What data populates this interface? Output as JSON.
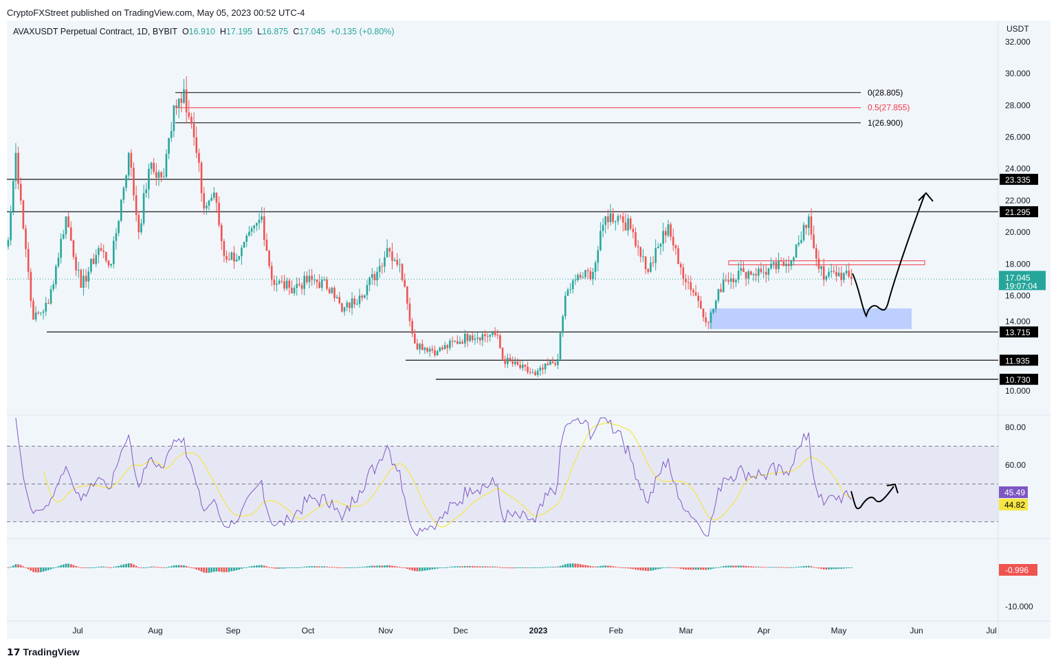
{
  "publisher": "CryptoFXStreet published on TradingView.com, May 05, 2023 00:52 UTC-4",
  "legend": {
    "symbol": "AVAXUSDT Perpetual Contract, 1D, BYBIT",
    "o_label": "O",
    "o": "16.910",
    "h_label": "H",
    "h": "17.195",
    "l_label": "L",
    "l": "16.875",
    "c_label": "C",
    "c": "17.045",
    "change": "+0.135 (+0.80%)"
  },
  "logo": "TradingView",
  "colors": {
    "up": "#26a69a",
    "down": "#ef5350",
    "rsi": "#7e57c2",
    "rsi_ma": "#f5e642",
    "fib_mid": "#f23645",
    "zone": "#a9c2ff"
  },
  "chart_data": [
    {
      "type": "candlestick",
      "title": "AVAXUSDT Perpetual Contract, 1D, BYBIT",
      "ylabel": "USDT",
      "ylim": [
        10,
        32
      ],
      "yticks": [
        "32.000",
        "30.000",
        "28.000",
        "26.000",
        "24.000",
        "22.000",
        "20.000",
        "18.000",
        "16.000",
        "14.000",
        "10.000"
      ],
      "xticks": [
        "Jul",
        "Aug",
        "Sep",
        "Oct",
        "Nov",
        "Dec",
        "2023",
        "Feb",
        "Mar",
        "Apr",
        "May",
        "Jun",
        "Jul"
      ],
      "close_keypoints_day_price": [
        [
          0,
          19.5
        ],
        [
          3,
          25
        ],
        [
          5,
          22
        ],
        [
          10,
          14.5
        ],
        [
          16,
          15.5
        ],
        [
          23,
          21
        ],
        [
          29,
          16.5
        ],
        [
          36,
          19
        ],
        [
          41,
          18
        ],
        [
          48,
          25
        ],
        [
          52,
          20
        ],
        [
          56,
          24
        ],
        [
          62,
          23.5
        ],
        [
          66,
          28
        ],
        [
          70,
          29
        ],
        [
          75,
          25
        ],
        [
          78,
          21.5
        ],
        [
          82,
          22.5
        ],
        [
          86,
          18.5
        ],
        [
          92,
          18.5
        ],
        [
          101,
          21
        ],
        [
          105,
          17
        ],
        [
          112,
          16.5
        ],
        [
          121,
          17
        ],
        [
          129,
          16.5
        ],
        [
          133,
          15
        ],
        [
          140,
          16
        ],
        [
          147,
          17.5
        ],
        [
          151,
          19
        ],
        [
          156,
          18
        ],
        [
          159,
          15.5
        ],
        [
          162,
          13
        ],
        [
          171,
          12.5
        ],
        [
          184,
          13.5
        ],
        [
          195,
          13.5
        ],
        [
          197,
          12
        ],
        [
          210,
          11
        ],
        [
          219,
          12
        ],
        [
          222,
          16
        ],
        [
          226,
          17
        ],
        [
          233,
          17.5
        ],
        [
          238,
          21
        ],
        [
          244,
          21
        ],
        [
          249,
          20
        ],
        [
          255,
          17.5
        ],
        [
          263,
          20.5
        ],
        [
          267,
          18
        ],
        [
          274,
          16
        ],
        [
          279,
          14.3
        ],
        [
          285,
          17
        ],
        [
          293,
          17.5
        ],
        [
          301,
          17.5
        ],
        [
          310,
          18
        ],
        [
          316,
          19.5
        ],
        [
          319,
          21
        ],
        [
          321,
          19
        ],
        [
          325,
          17
        ],
        [
          329,
          17.5
        ],
        [
          336,
          17.045
        ]
      ],
      "levels": [
        {
          "label": "23.335",
          "value": 23.335
        },
        {
          "label": "21.295",
          "value": 21.295
        },
        {
          "label": "13.715",
          "value": 13.715
        },
        {
          "label": "11.935",
          "value": 11.935
        },
        {
          "label": "10.730",
          "value": 10.73
        }
      ],
      "fib": [
        {
          "label": "0(28.805)",
          "value": 28.805
        },
        {
          "label": "0.5(27.855)",
          "value": 27.855
        },
        {
          "label": "1(26.900)",
          "value": 26.9
        }
      ],
      "resistance_zone": [
        17.95,
        18.2
      ],
      "demand_zone": [
        13.9,
        15.2
      ],
      "last_price": {
        "value": "17.045",
        "countdown": "19:07:04"
      }
    },
    {
      "type": "line",
      "title": "RSI",
      "ylim": [
        20,
        85
      ],
      "yticks": [
        "80.00",
        "60.00"
      ],
      "bands": [
        30,
        50,
        70
      ],
      "rsi_value": "45.49",
      "ma_value": "44.82"
    },
    {
      "type": "bar",
      "title": "MACD histogram",
      "yticks": [
        "-10.000"
      ],
      "value": "-0.996"
    }
  ]
}
